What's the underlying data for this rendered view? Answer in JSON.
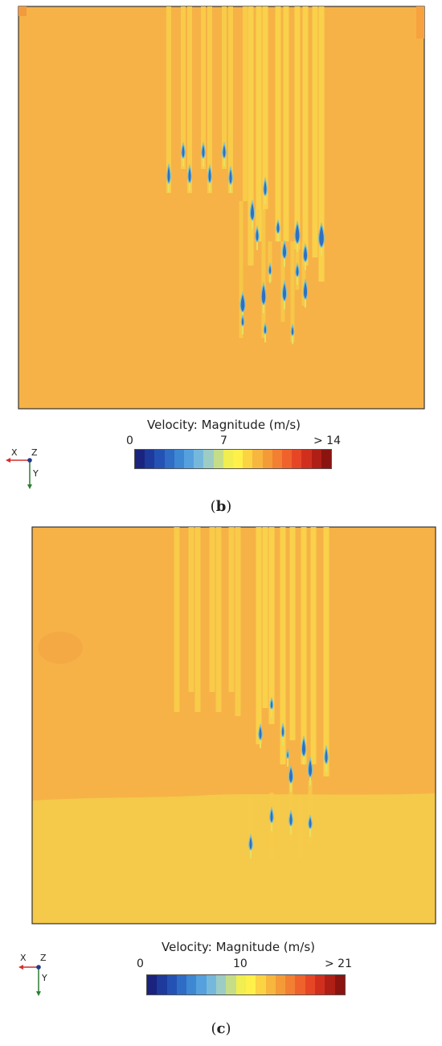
{
  "panel_b": {
    "caption_letter": "b",
    "colorbar": {
      "title": "Velocity: Magnitude (m/s)",
      "tick_min": "0",
      "tick_mid": "7",
      "tick_max": "> 14"
    },
    "triad": {
      "x_label": "X",
      "z_label": "Z",
      "y_label": "Y"
    }
  },
  "panel_c": {
    "caption_letter": "c",
    "colorbar": {
      "title": "Velocity: Magnitude (m/s)",
      "tick_min": "0",
      "tick_mid": "10",
      "tick_max": "> 21"
    },
    "triad": {
      "x_label": "X",
      "z_label": "Z",
      "y_label": "Y"
    }
  },
  "colors": {
    "background_field": "#f6b247",
    "lower_field_c": "#f5c94a",
    "jet": "#f9d34a",
    "low_velocity": "#2f6fc0",
    "colormap": [
      "#1a237e",
      "#1d3a9c",
      "#2352b4",
      "#2f6cc6",
      "#3d87d3",
      "#55a0dd",
      "#76b8dc",
      "#9cccc4",
      "#c6dd88",
      "#f0ee50",
      "#fff04a",
      "#fbd343",
      "#f7b63e",
      "#f49b38",
      "#f27f32",
      "#ef622c",
      "#e64626",
      "#d12f1e",
      "#b01f16",
      "#8b1410"
    ]
  }
}
